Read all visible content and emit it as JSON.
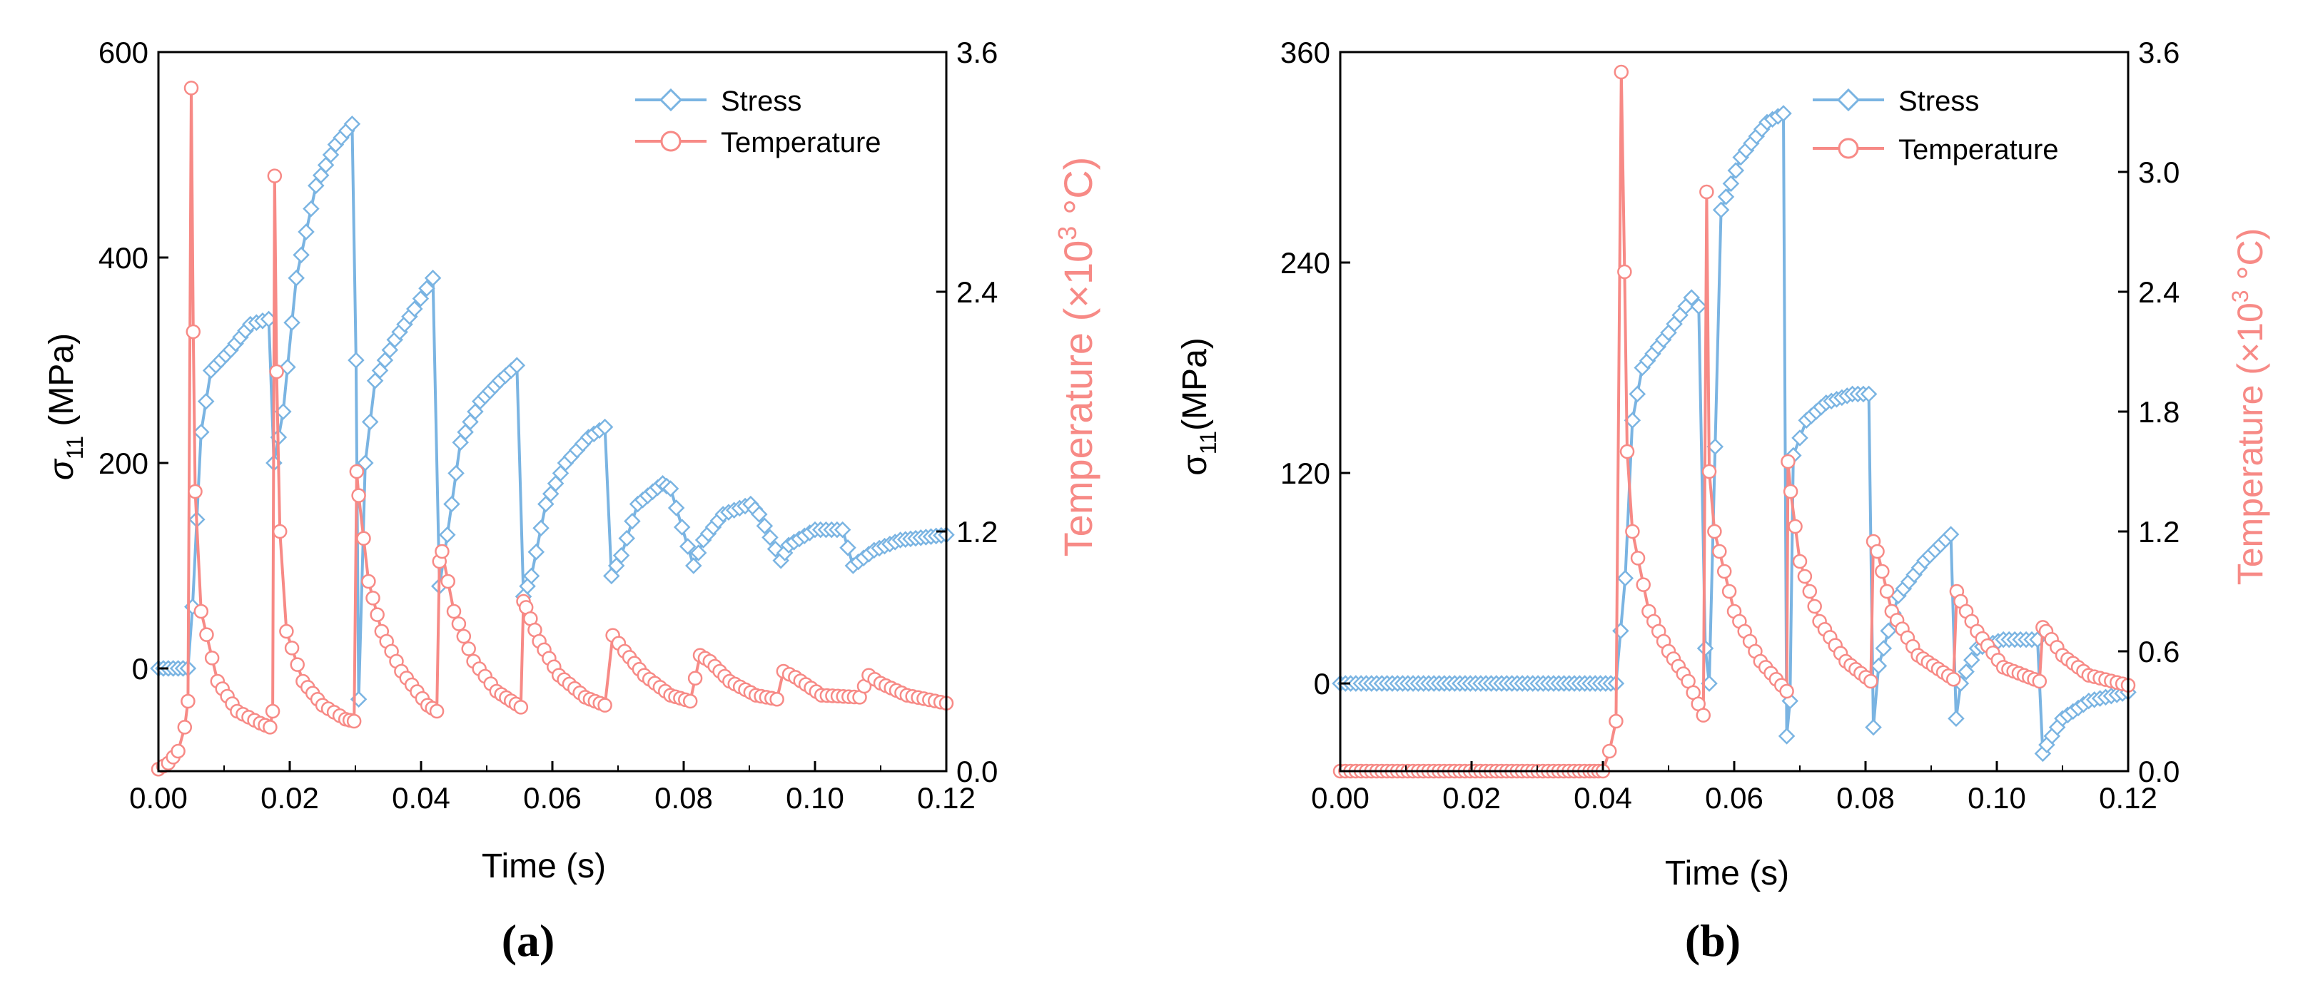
{
  "colors": {
    "stress": "#7ab4e2",
    "temperature": "#f78a86",
    "axis": "#000000",
    "background": "#ffffff"
  },
  "chart_data": [
    {
      "type": "line",
      "panel_label": "a",
      "xlabel": "Time (s)",
      "ylabel_symbol": "σ",
      "ylabel_sub": "11",
      "ylabel_rest": " (MPa)",
      "y2label_text": "Temperature (×10",
      "y2label_sup": "3",
      "y2label_unit": " °C)",
      "xlim": [
        0,
        0.12
      ],
      "ylim": [
        -100,
        600
      ],
      "y2lim": [
        0,
        3.6
      ],
      "x_ticks": [
        "0.00",
        "0.02",
        "0.04",
        "0.06",
        "0.08",
        "0.10",
        "0.12"
      ],
      "y_ticks": [
        "0",
        "200",
        "400",
        "600"
      ],
      "y2_ticks": [
        "0.0",
        "1.2",
        "2.4",
        "3.6"
      ],
      "legend_position": "top-right",
      "series": [
        {
          "name": "Stress",
          "axis": "left",
          "marker": "diamond",
          "x": [
            0.0,
            0.0045,
            0.0052,
            0.0065,
            0.008,
            0.011,
            0.014,
            0.0168,
            0.0176,
            0.019,
            0.021,
            0.024,
            0.027,
            0.0295,
            0.0301,
            0.0305,
            0.0315,
            0.033,
            0.036,
            0.039,
            0.0418,
            0.0428,
            0.044,
            0.046,
            0.049,
            0.052,
            0.0546,
            0.0556,
            0.0568,
            0.059,
            0.062,
            0.0655,
            0.068,
            0.069,
            0.0705,
            0.073,
            0.0768,
            0.078,
            0.0815,
            0.083,
            0.086,
            0.0902,
            0.0915,
            0.0948,
            0.096,
            0.1,
            0.1042,
            0.1058,
            0.109,
            0.113,
            0.12
          ],
          "y": [
            0,
            0,
            60,
            230,
            290,
            310,
            335,
            340,
            200,
            250,
            380,
            470,
            510,
            530,
            300,
            -30,
            200,
            280,
            320,
            350,
            380,
            80,
            130,
            220,
            260,
            280,
            295,
            70,
            90,
            160,
            200,
            225,
            235,
            90,
            110,
            160,
            180,
            175,
            100,
            125,
            150,
            160,
            150,
            105,
            120,
            135,
            135,
            100,
            115,
            125,
            130
          ]
        },
        {
          "name": "Temperature",
          "axis": "right",
          "marker": "circle",
          "x": [
            0.0,
            0.0015,
            0.003,
            0.004,
            0.0045,
            0.005,
            0.0053,
            0.0056,
            0.0065,
            0.009,
            0.012,
            0.0155,
            0.017,
            0.0174,
            0.0177,
            0.018,
            0.0185,
            0.0195,
            0.022,
            0.025,
            0.0285,
            0.0298,
            0.0302,
            0.0305,
            0.032,
            0.034,
            0.037,
            0.041,
            0.0424,
            0.0428,
            0.0432,
            0.045,
            0.048,
            0.0515,
            0.0552,
            0.0556,
            0.056,
            0.058,
            0.061,
            0.065,
            0.068,
            0.0692,
            0.071,
            0.074,
            0.078,
            0.081,
            0.0825,
            0.084,
            0.087,
            0.091,
            0.0942,
            0.0952,
            0.097,
            0.101,
            0.1068,
            0.1082,
            0.11,
            0.114,
            0.12
          ],
          "y": [
            0.01,
            0.04,
            0.1,
            0.22,
            0.35,
            3.42,
            2.2,
            1.4,
            0.8,
            0.45,
            0.3,
            0.24,
            0.22,
            0.3,
            2.98,
            2.0,
            1.2,
            0.7,
            0.45,
            0.33,
            0.26,
            0.25,
            1.5,
            1.38,
            0.95,
            0.7,
            0.5,
            0.33,
            0.3,
            1.05,
            1.1,
            0.8,
            0.55,
            0.4,
            0.32,
            0.85,
            0.82,
            0.65,
            0.48,
            0.37,
            0.33,
            0.68,
            0.6,
            0.48,
            0.38,
            0.35,
            0.58,
            0.55,
            0.45,
            0.38,
            0.36,
            0.5,
            0.47,
            0.38,
            0.37,
            0.48,
            0.44,
            0.38,
            0.34
          ]
        }
      ]
    },
    {
      "type": "line",
      "panel_label": "b",
      "xlabel": "Time (s)",
      "ylabel_symbol": "σ",
      "ylabel_sub": "11",
      "ylabel_rest": "(MPa)",
      "y2label_text": "Temperature (×10",
      "y2label_sup": "3",
      "y2label_unit": " °C)",
      "xlim": [
        0,
        0.12
      ],
      "ylim": [
        -50,
        360
      ],
      "y2lim": [
        0,
        3.6
      ],
      "x_ticks": [
        "0.00",
        "0.02",
        "0.04",
        "0.06",
        "0.08",
        "0.10",
        "0.12"
      ],
      "y_ticks": [
        "0",
        "120",
        "240",
        "360"
      ],
      "y2_ticks": [
        "0.0",
        "0.6",
        "1.2",
        "1.8",
        "2.4",
        "3.0",
        "3.6"
      ],
      "legend_position": "top-right",
      "series": [
        {
          "name": "Stress",
          "axis": "left",
          "marker": "diamond",
          "x": [
            0.0,
            0.042,
            0.0434,
            0.0445,
            0.046,
            0.05,
            0.0535,
            0.0546,
            0.0556,
            0.0562,
            0.058,
            0.061,
            0.065,
            0.0675,
            0.068,
            0.0685,
            0.069,
            0.071,
            0.074,
            0.078,
            0.0805,
            0.0812,
            0.082,
            0.085,
            0.089,
            0.093,
            0.0938,
            0.0945,
            0.097,
            0.101,
            0.1062,
            0.107,
            0.1076,
            0.11,
            0.114,
            0.12
          ],
          "y": [
            0,
            0,
            60,
            150,
            180,
            200,
            220,
            215,
            20,
            0,
            270,
            300,
            320,
            325,
            -30,
            -10,
            130,
            150,
            160,
            165,
            165,
            -25,
            10,
            50,
            70,
            85,
            -20,
            0,
            20,
            25,
            25,
            -40,
            -35,
            -20,
            -10,
            -5
          ]
        },
        {
          "name": "Temperature",
          "axis": "right",
          "marker": "circle",
          "x": [
            0.0,
            0.038,
            0.04,
            0.041,
            0.042,
            0.0428,
            0.0433,
            0.0437,
            0.0445,
            0.047,
            0.05,
            0.053,
            0.0553,
            0.0558,
            0.0562,
            0.057,
            0.06,
            0.064,
            0.068,
            0.0682,
            0.0686,
            0.07,
            0.073,
            0.077,
            0.0808,
            0.0812,
            0.0818,
            0.084,
            0.088,
            0.0934,
            0.0939,
            0.0945,
            0.097,
            0.101,
            0.1065,
            0.107,
            0.1075,
            0.11,
            0.114,
            0.12
          ],
          "y": [
            0.0,
            0.0,
            0.0,
            0.1,
            0.25,
            3.5,
            2.5,
            1.6,
            1.2,
            0.8,
            0.6,
            0.45,
            0.28,
            2.9,
            1.5,
            1.2,
            0.8,
            0.55,
            0.4,
            1.55,
            1.4,
            1.05,
            0.75,
            0.55,
            0.45,
            1.15,
            1.1,
            0.8,
            0.58,
            0.46,
            0.9,
            0.85,
            0.7,
            0.52,
            0.45,
            0.72,
            0.7,
            0.58,
            0.48,
            0.43
          ]
        }
      ]
    }
  ]
}
